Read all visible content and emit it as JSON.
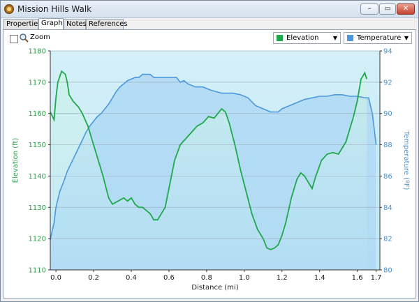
{
  "window": {
    "title": "Mission Hills Walk",
    "controls": {
      "minimize": "–",
      "maximize": "▭",
      "close": "✕"
    }
  },
  "tabs": [
    {
      "label": "Properties"
    },
    {
      "label": "Graph"
    },
    {
      "label": "Notes"
    },
    {
      "label": "References"
    }
  ],
  "toolbar": {
    "zoom_label": "Zoom",
    "left_series_select": "Elevation",
    "right_series_select": "Temperature"
  },
  "colors": {
    "elevation": "#1fa84b",
    "temperature": "#4c98dc"
  },
  "chart_data": {
    "type": "line",
    "xlabel": "Distance  (mi)",
    "ylabel_left": "Elevation (ft)",
    "ylabel_right": "Temperature (ºF)",
    "x_ticks": [
      "0.0",
      "0.2",
      "0.4",
      "0.6",
      "0.8",
      "1.0",
      "1.2",
      "1.4",
      "1.6",
      "1.7"
    ],
    "x_tick_values": [
      0.0,
      0.2,
      0.4,
      0.6,
      0.8,
      1.0,
      1.2,
      1.4,
      1.6,
      1.7
    ],
    "y_left_ticks": [
      "1110",
      "1120",
      "1130",
      "1140",
      "1150",
      "1160",
      "1170",
      "1180"
    ],
    "y_right_ticks": [
      "80",
      "82",
      "84",
      "86",
      "88",
      "90",
      "92",
      "94"
    ],
    "xlim": [
      -0.03,
      1.72
    ],
    "ylim_left": [
      1110,
      1180
    ],
    "ylim_right": [
      80,
      94
    ],
    "grid": true,
    "series": [
      {
        "name": "Elevation",
        "axis": "left",
        "points": [
          [
            -0.03,
            1160.5
          ],
          [
            -0.01,
            1158
          ],
          [
            0.0,
            1165
          ],
          [
            0.01,
            1170
          ],
          [
            0.03,
            1173.5
          ],
          [
            0.05,
            1172.5
          ],
          [
            0.06,
            1170
          ],
          [
            0.07,
            1166
          ],
          [
            0.09,
            1164
          ],
          [
            0.12,
            1162
          ],
          [
            0.14,
            1160
          ],
          [
            0.17,
            1156
          ],
          [
            0.19,
            1152
          ],
          [
            0.22,
            1146
          ],
          [
            0.25,
            1140
          ],
          [
            0.28,
            1133
          ],
          [
            0.3,
            1131
          ],
          [
            0.33,
            1132
          ],
          [
            0.36,
            1133
          ],
          [
            0.38,
            1132
          ],
          [
            0.4,
            1133
          ],
          [
            0.42,
            1131
          ],
          [
            0.44,
            1130
          ],
          [
            0.46,
            1130
          ],
          [
            0.48,
            1129
          ],
          [
            0.5,
            1128
          ],
          [
            0.52,
            1126
          ],
          [
            0.54,
            1126
          ],
          [
            0.56,
            1128
          ],
          [
            0.58,
            1130
          ],
          [
            0.6,
            1136
          ],
          [
            0.63,
            1145
          ],
          [
            0.66,
            1150
          ],
          [
            0.69,
            1152
          ],
          [
            0.72,
            1154
          ],
          [
            0.75,
            1156
          ],
          [
            0.78,
            1157
          ],
          [
            0.81,
            1159
          ],
          [
            0.84,
            1158.5
          ],
          [
            0.86,
            1160
          ],
          [
            0.88,
            1161.5
          ],
          [
            0.9,
            1160.5
          ],
          [
            0.92,
            1157
          ],
          [
            0.95,
            1150
          ],
          [
            0.98,
            1142
          ],
          [
            1.01,
            1135
          ],
          [
            1.04,
            1128
          ],
          [
            1.07,
            1123
          ],
          [
            1.1,
            1120
          ],
          [
            1.12,
            1117
          ],
          [
            1.14,
            1116.5
          ],
          [
            1.16,
            1117
          ],
          [
            1.18,
            1118
          ],
          [
            1.2,
            1121
          ],
          [
            1.22,
            1125
          ],
          [
            1.25,
            1133
          ],
          [
            1.28,
            1139
          ],
          [
            1.3,
            1141
          ],
          [
            1.32,
            1140
          ],
          [
            1.34,
            1138
          ],
          [
            1.36,
            1136
          ],
          [
            1.38,
            1140
          ],
          [
            1.41,
            1145
          ],
          [
            1.44,
            1147
          ],
          [
            1.47,
            1147.5
          ],
          [
            1.5,
            1147
          ],
          [
            1.52,
            1149
          ],
          [
            1.54,
            1151
          ],
          [
            1.56,
            1155
          ],
          [
            1.58,
            1159
          ],
          [
            1.6,
            1164
          ],
          [
            1.62,
            1171
          ],
          [
            1.64,
            1173
          ],
          [
            1.65,
            1171
          ]
        ]
      },
      {
        "name": "Temperature",
        "axis": "right",
        "points": [
          [
            -0.03,
            81.9
          ],
          [
            -0.02,
            82.5
          ],
          [
            -0.01,
            83
          ],
          [
            0.0,
            84
          ],
          [
            0.02,
            85
          ],
          [
            0.04,
            85.6
          ],
          [
            0.06,
            86.3
          ],
          [
            0.08,
            86.8
          ],
          [
            0.1,
            87.3
          ],
          [
            0.12,
            87.8
          ],
          [
            0.14,
            88.3
          ],
          [
            0.16,
            88.8
          ],
          [
            0.18,
            89.2
          ],
          [
            0.2,
            89.5
          ],
          [
            0.22,
            89.8
          ],
          [
            0.24,
            90
          ],
          [
            0.26,
            90.3
          ],
          [
            0.28,
            90.6
          ],
          [
            0.3,
            91
          ],
          [
            0.32,
            91.4
          ],
          [
            0.34,
            91.7
          ],
          [
            0.36,
            91.9
          ],
          [
            0.38,
            92.1
          ],
          [
            0.4,
            92.2
          ],
          [
            0.42,
            92.3
          ],
          [
            0.44,
            92.3
          ],
          [
            0.46,
            92.5
          ],
          [
            0.5,
            92.5
          ],
          [
            0.52,
            92.3
          ],
          [
            0.6,
            92.3
          ],
          [
            0.64,
            92.3
          ],
          [
            0.66,
            92
          ],
          [
            0.68,
            92.1
          ],
          [
            0.7,
            91.9
          ],
          [
            0.74,
            91.7
          ],
          [
            0.78,
            91.7
          ],
          [
            0.82,
            91.5
          ],
          [
            0.88,
            91.3
          ],
          [
            0.94,
            91.3
          ],
          [
            0.98,
            91.2
          ],
          [
            1.02,
            91
          ],
          [
            1.06,
            90.5
          ],
          [
            1.1,
            90.3
          ],
          [
            1.14,
            90.1
          ],
          [
            1.18,
            90.1
          ],
          [
            1.2,
            90.3
          ],
          [
            1.24,
            90.5
          ],
          [
            1.28,
            90.7
          ],
          [
            1.32,
            90.9
          ],
          [
            1.36,
            91
          ],
          [
            1.4,
            91.1
          ],
          [
            1.44,
            91.1
          ],
          [
            1.48,
            91.2
          ],
          [
            1.52,
            91.2
          ],
          [
            1.56,
            91.1
          ],
          [
            1.6,
            91.1
          ],
          [
            1.64,
            91
          ],
          [
            1.66,
            91
          ],
          [
            1.68,
            90
          ],
          [
            1.7,
            88
          ]
        ]
      }
    ]
  }
}
